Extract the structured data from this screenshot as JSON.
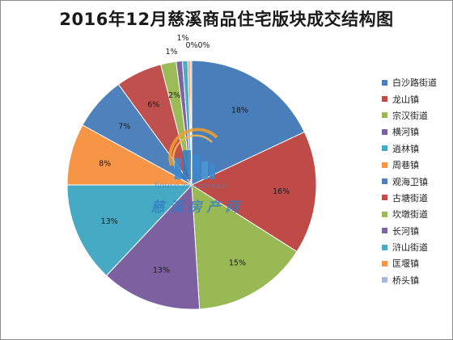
{
  "chart_data": {
    "type": "pie",
    "title": "2016年12月慈溪商品住宅版块成交结构图",
    "categories": [
      "白沙路街道",
      "龙山镇",
      "宗汉街道",
      "横河镇",
      "逍林镇",
      "周巷镇",
      "观海卫镇",
      "古塘街道",
      "坎墩街道",
      "长河镇",
      "浒山街道",
      "匡堰镇",
      "桥头镇"
    ],
    "values": [
      18,
      16,
      15,
      13,
      13,
      8,
      7,
      6,
      2,
      1,
      1,
      0,
      0
    ],
    "labels": [
      "18%",
      "16%",
      "15%",
      "13%",
      "13%",
      "8%",
      "7%",
      "6%",
      "2%",
      "1%",
      "1%",
      "0%",
      "0%"
    ],
    "colors": [
      "#4A7EBB",
      "#BE4B48",
      "#98B954",
      "#7D60A0",
      "#46AAC5",
      "#F69545",
      "#4F81BD",
      "#C0504D",
      "#9BBB59",
      "#8064A2",
      "#4BACC6",
      "#F79646",
      "#A5B9DB"
    ],
    "legend_position": "right"
  },
  "watermark": {
    "site": "house.zjol.com.cn",
    "brand": "慈溪房产网"
  }
}
